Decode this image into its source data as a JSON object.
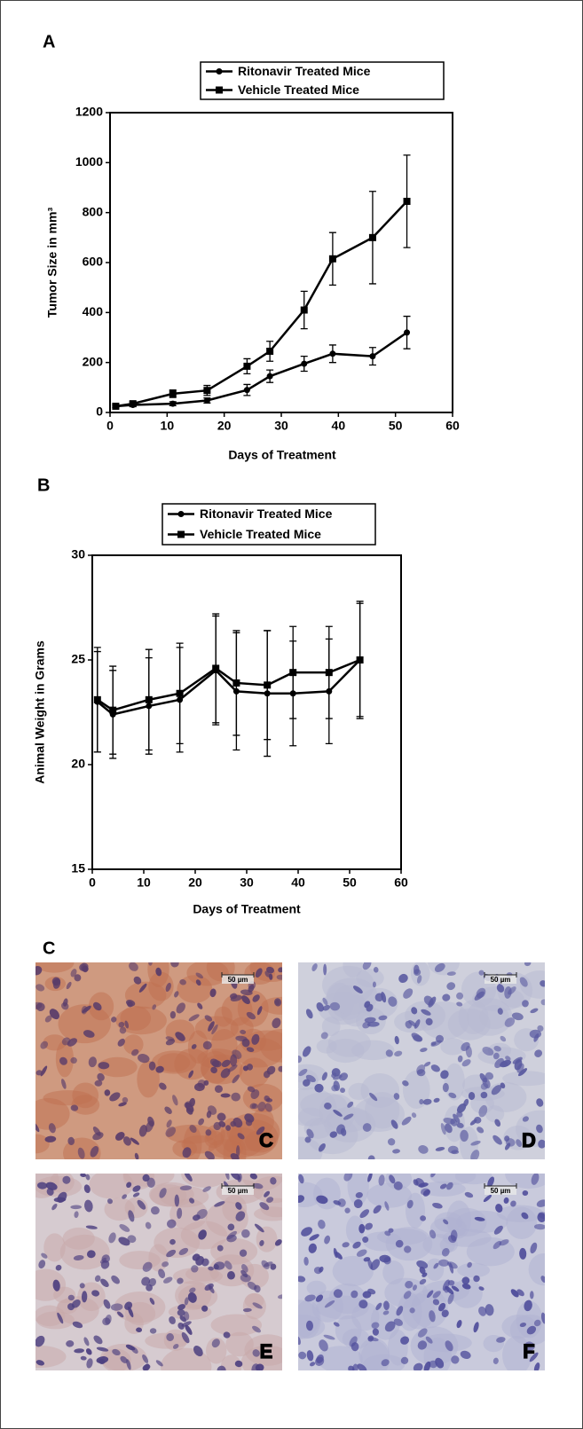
{
  "chart_data": [
    {
      "type": "line",
      "panel_label": "A",
      "y_label": "Tumor Size in mm³",
      "x_label": "Days of Treatment",
      "x": [
        1,
        4,
        11,
        17,
        24,
        28,
        34,
        39,
        46,
        52
      ],
      "series": [
        {
          "name": "Ritonavir Treated Mice",
          "color": "#000000",
          "marker": "circle",
          "values": [
            25,
            30,
            35,
            48,
            90,
            145,
            195,
            235,
            225,
            320
          ],
          "errors": [
            5,
            5,
            8,
            10,
            22,
            25,
            30,
            35,
            35,
            65
          ]
        },
        {
          "name": "Vehicle Treated Mice",
          "color": "#000000",
          "marker": "square",
          "values": [
            25,
            35,
            75,
            88,
            185,
            245,
            410,
            615,
            700,
            845
          ],
          "errors": [
            5,
            8,
            15,
            20,
            30,
            40,
            75,
            105,
            185,
            185
          ]
        }
      ],
      "xlim": [
        0,
        60
      ],
      "ylim": [
        0,
        1200
      ],
      "xticks": [
        0,
        10,
        20,
        30,
        40,
        50,
        60
      ],
      "yticks": [
        0,
        200,
        400,
        600,
        800,
        1000,
        1200
      ],
      "legend": "top",
      "grid": false
    },
    {
      "type": "line",
      "panel_label": "B",
      "y_label": "Animal Weight in Grams",
      "x_label": "Days of Treatment",
      "x": [
        1,
        4,
        11,
        17,
        24,
        28,
        34,
        39,
        46,
        52
      ],
      "series": [
        {
          "name": "Ritonavir Treated Mice",
          "color": "#000000",
          "marker": "circle",
          "values": [
            23.0,
            22.4,
            22.8,
            23.1,
            24.5,
            23.5,
            23.4,
            23.4,
            23.5,
            25.0
          ],
          "errors": [
            2.4,
            2.1,
            2.3,
            2.5,
            2.6,
            2.8,
            3.0,
            2.5,
            2.5,
            2.7
          ]
        },
        {
          "name": "Vehicle Treated Mice",
          "color": "#000000",
          "marker": "square",
          "values": [
            23.1,
            22.6,
            23.1,
            23.4,
            24.6,
            23.9,
            23.8,
            24.4,
            24.4,
            25.0
          ],
          "errors": [
            2.5,
            2.1,
            2.4,
            2.4,
            2.6,
            2.5,
            2.6,
            2.2,
            2.2,
            2.8
          ]
        }
      ],
      "xlim": [
        0,
        60
      ],
      "ylim": [
        15,
        30
      ],
      "xticks": [
        0,
        10,
        20,
        30,
        40,
        50,
        60
      ],
      "yticks": [
        15,
        20,
        25,
        30
      ],
      "legend": "top",
      "grid": false
    }
  ],
  "figure_panel_C": {
    "label": "C",
    "scale_bar": "50 µm",
    "images": [
      "C",
      "D",
      "E",
      "F"
    ]
  }
}
